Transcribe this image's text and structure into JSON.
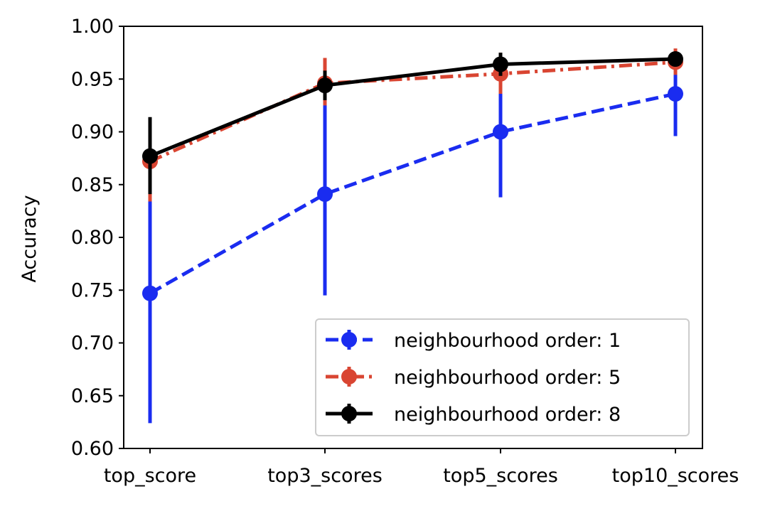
{
  "chart_data": {
    "type": "line",
    "title": "",
    "xlabel": "",
    "ylabel": "Accuracy",
    "categories": [
      "top_score",
      "top3_scores",
      "top5_scores",
      "top10_scores"
    ],
    "ylim": [
      0.6,
      1.0
    ],
    "yticks": [
      0.6,
      0.65,
      0.7,
      0.75,
      0.8,
      0.85,
      0.9,
      0.95,
      1.0
    ],
    "ytick_labels": [
      "0.60",
      "0.65",
      "0.70",
      "0.75",
      "0.80",
      "0.85",
      "0.90",
      "0.95",
      "1.00"
    ],
    "grid": false,
    "legend_position": "lower-right",
    "series": [
      {
        "name": "neighbourhood order: 1",
        "color": "#1a2cf0",
        "linestyle": "dashed",
        "values": [
          0.747,
          0.841,
          0.9,
          0.936
        ],
        "error_low": [
          0.624,
          0.745,
          0.838,
          0.896
        ],
        "error_high": [
          0.87,
          0.937,
          0.962,
          0.976
        ]
      },
      {
        "name": "neighbourhood order: 5",
        "color": "#d94532",
        "linestyle": "dashdot",
        "values": [
          0.872,
          0.946,
          0.955,
          0.966
        ],
        "error_low": [
          0.834,
          0.925,
          0.936,
          0.954
        ],
        "error_high": [
          0.91,
          0.97,
          0.975,
          0.979
        ]
      },
      {
        "name": "neighbourhood order: 8",
        "color": "#000000",
        "linestyle": "solid",
        "values": [
          0.877,
          0.944,
          0.964,
          0.969
        ],
        "error_low": [
          0.841,
          0.93,
          0.953,
          0.962
        ],
        "error_high": [
          0.914,
          0.958,
          0.975,
          0.976
        ]
      }
    ]
  }
}
